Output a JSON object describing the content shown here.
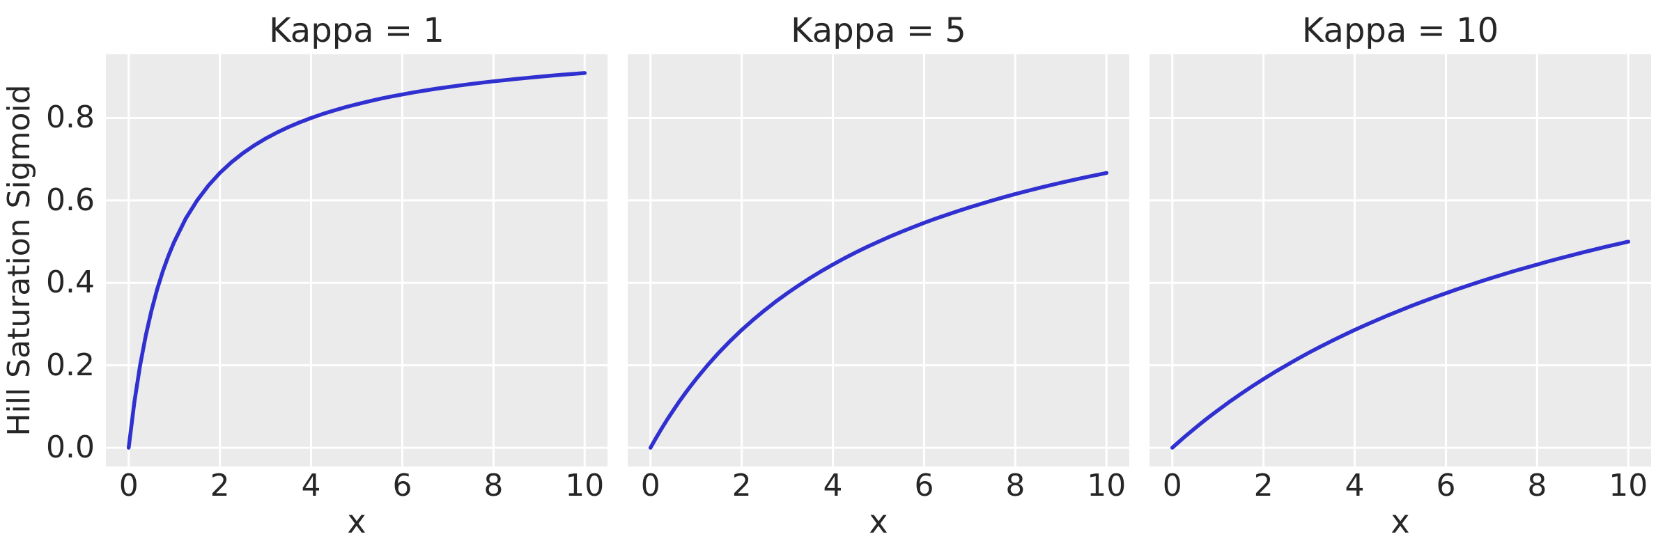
{
  "figure": {
    "background": "#ffffff",
    "text_color": "#262626"
  },
  "chart_data": {
    "type": "line",
    "ylabel": "Hill Saturation Sigmoid",
    "xlabel": "x",
    "line_color": "#3030d0",
    "plot_background": "#ebebeb",
    "grid_color": "#ffffff",
    "grid": true,
    "legend": false,
    "xlim": [
      -0.5,
      10.5
    ],
    "ylim": [
      -0.0455,
      0.9545
    ],
    "xticks": [
      0,
      2,
      4,
      6,
      8,
      10
    ],
    "yticks": [
      "0.0",
      "0.2",
      "0.4",
      "0.6",
      "0.8"
    ],
    "x": [
      0,
      0.125,
      0.25,
      0.375,
      0.5,
      0.625,
      0.75,
      0.875,
      1,
      1.25,
      1.5,
      1.75,
      2,
      2.25,
      2.5,
      2.75,
      3,
      3.25,
      3.5,
      3.75,
      4,
      4.25,
      4.5,
      4.75,
      5,
      5.25,
      5.5,
      5.75,
      6,
      6.25,
      6.5,
      6.75,
      7,
      7.25,
      7.5,
      7.75,
      8,
      8.25,
      8.5,
      8.75,
      9,
      9.25,
      9.5,
      9.75,
      10
    ],
    "subplots": [
      {
        "title": "Kappa = 1",
        "kappa": 1,
        "y": [
          0,
          0.1111,
          0.2,
          0.2727,
          0.3333,
          0.3846,
          0.4286,
          0.4667,
          0.5,
          0.5556,
          0.6,
          0.6364,
          0.6667,
          0.6923,
          0.7143,
          0.7333,
          0.75,
          0.7647,
          0.7778,
          0.7895,
          0.8,
          0.8095,
          0.8182,
          0.8261,
          0.8333,
          0.84,
          0.8462,
          0.8519,
          0.8571,
          0.8621,
          0.8667,
          0.871,
          0.875,
          0.8788,
          0.8824,
          0.8857,
          0.8889,
          0.8919,
          0.8947,
          0.8974,
          0.9,
          0.9024,
          0.9048,
          0.907,
          0.9091
        ]
      },
      {
        "title": "Kappa = 5",
        "kappa": 5,
        "y": [
          0,
          0.0244,
          0.0476,
          0.0698,
          0.0909,
          0.1111,
          0.1304,
          0.1489,
          0.1667,
          0.2,
          0.2308,
          0.2593,
          0.2857,
          0.3103,
          0.3333,
          0.3548,
          0.375,
          0.3939,
          0.4118,
          0.4286,
          0.4444,
          0.4595,
          0.4737,
          0.4872,
          0.5,
          0.5122,
          0.5238,
          0.5349,
          0.5455,
          0.5556,
          0.5652,
          0.5745,
          0.5833,
          0.5918,
          0.6,
          0.6078,
          0.6154,
          0.6226,
          0.6296,
          0.6364,
          0.6429,
          0.6491,
          0.6552,
          0.661,
          0.6667
        ]
      },
      {
        "title": "Kappa = 10",
        "kappa": 10,
        "y": [
          0,
          0.0123,
          0.0244,
          0.0361,
          0.0476,
          0.0588,
          0.0698,
          0.0805,
          0.0909,
          0.1111,
          0.1304,
          0.1489,
          0.1667,
          0.1837,
          0.2,
          0.2157,
          0.2308,
          0.2453,
          0.2593,
          0.2727,
          0.2857,
          0.2982,
          0.3103,
          0.322,
          0.3333,
          0.3443,
          0.3548,
          0.3651,
          0.375,
          0.3846,
          0.3939,
          0.403,
          0.4118,
          0.4203,
          0.4286,
          0.4366,
          0.4444,
          0.4521,
          0.4595,
          0.4667,
          0.4737,
          0.4805,
          0.4872,
          0.4937,
          0.5
        ]
      }
    ]
  }
}
